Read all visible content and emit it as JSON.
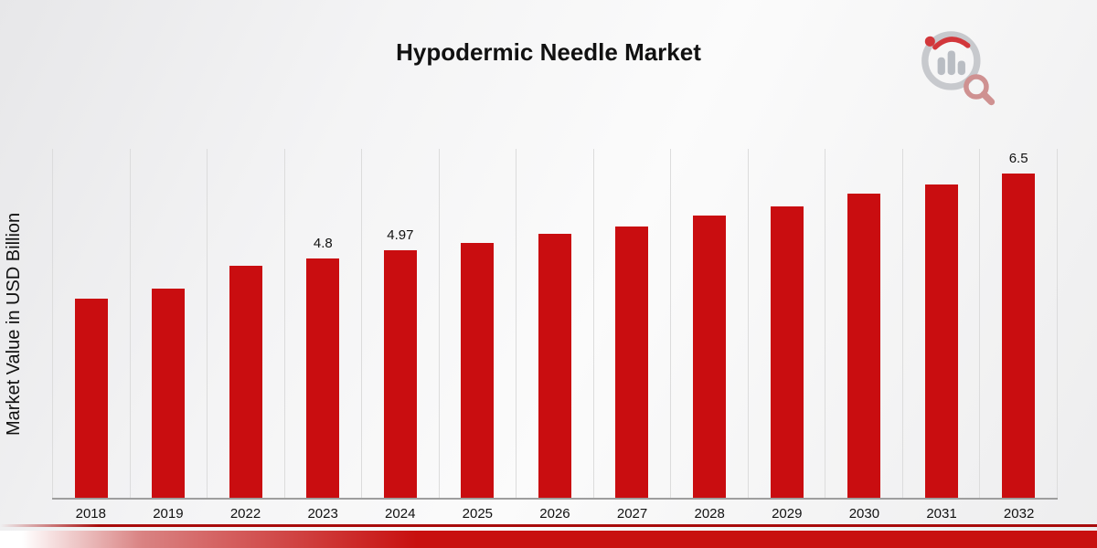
{
  "header": {
    "title": "Hypodermic Needle Market",
    "logo_icon": "bar-chart-magnifier-logo"
  },
  "axes": {
    "ylabel": "Market Value in USD Billion"
  },
  "chart_data": {
    "type": "bar",
    "title": "Hypodermic Needle Market",
    "xlabel": "",
    "ylabel": "Market Value in USD Billion",
    "ylim": [
      0,
      7
    ],
    "grid": "vertical-light-gray",
    "legend": "none",
    "bar_color": "#c90d10",
    "categories": [
      "2018",
      "2019",
      "2022",
      "2023",
      "2024",
      "2025",
      "2026",
      "2027",
      "2028",
      "2029",
      "2030",
      "2031",
      "2032"
    ],
    "values": [
      4.0,
      4.2,
      4.65,
      4.8,
      4.97,
      5.12,
      5.3,
      5.45,
      5.67,
      5.85,
      6.1,
      6.28,
      6.5
    ],
    "data_labels": [
      "",
      "",
      "",
      "4.8",
      "4.97",
      "",
      "",
      "",
      "",
      "",
      "",
      "",
      "6.5"
    ]
  }
}
